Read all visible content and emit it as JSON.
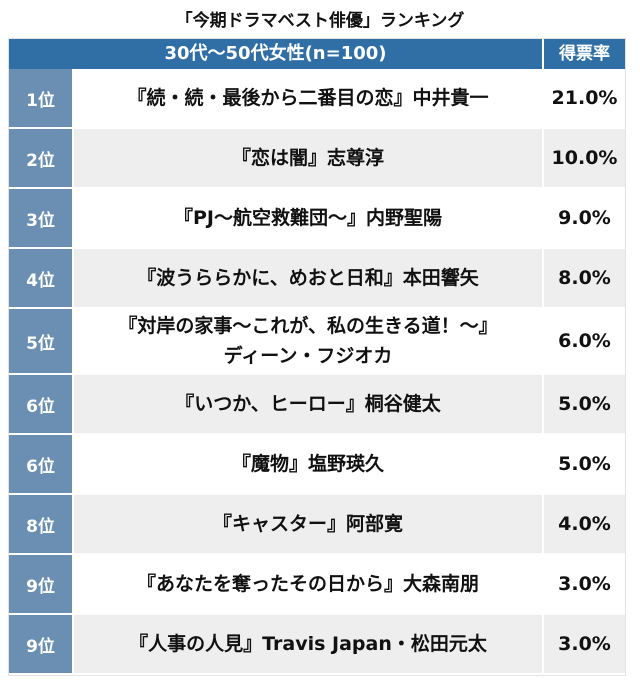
{
  "chart_data": {
    "type": "table",
    "title": "「今期ドラマベスト俳優」ランキング",
    "header": {
      "main": "30代〜50代女性(n=100)",
      "rate": "得票率"
    },
    "rows": [
      {
        "rank": "1位",
        "name": "『続・続・最後から二番目の恋』中井貴一",
        "rate": "21.0%"
      },
      {
        "rank": "2位",
        "name": "『恋は闇』志尊淳",
        "rate": "10.0%"
      },
      {
        "rank": "3位",
        "name": "『PJ〜航空救難団〜』内野聖陽",
        "rate": "9.0%"
      },
      {
        "rank": "4位",
        "name": "『波うららかに、めおと日和』本田響矢",
        "rate": "8.0%"
      },
      {
        "rank": "5位",
        "name": "『対岸の家事〜これが、私の生きる道！〜』\nディーン・フジオカ",
        "rate": "6.0%"
      },
      {
        "rank": "6位",
        "name": "『いつか、ヒーロー』桐谷健太",
        "rate": "5.0%"
      },
      {
        "rank": "6位",
        "name": "『魔物』塩野瑛久",
        "rate": "5.0%"
      },
      {
        "rank": "8位",
        "name": "『キャスター』阿部寛",
        "rate": "4.0%"
      },
      {
        "rank": "9位",
        "name": "『あなたを奪ったその日から』大森南朋",
        "rate": "3.0%"
      },
      {
        "rank": "9位",
        "name": "『人事の人見』Travis Japan・松田元太",
        "rate": "3.0%"
      }
    ],
    "colors": {
      "header_bg": "#2f6fa6",
      "rank_bg": "#6a8fb2",
      "row_alt_bg": "#eeeeee"
    }
  }
}
